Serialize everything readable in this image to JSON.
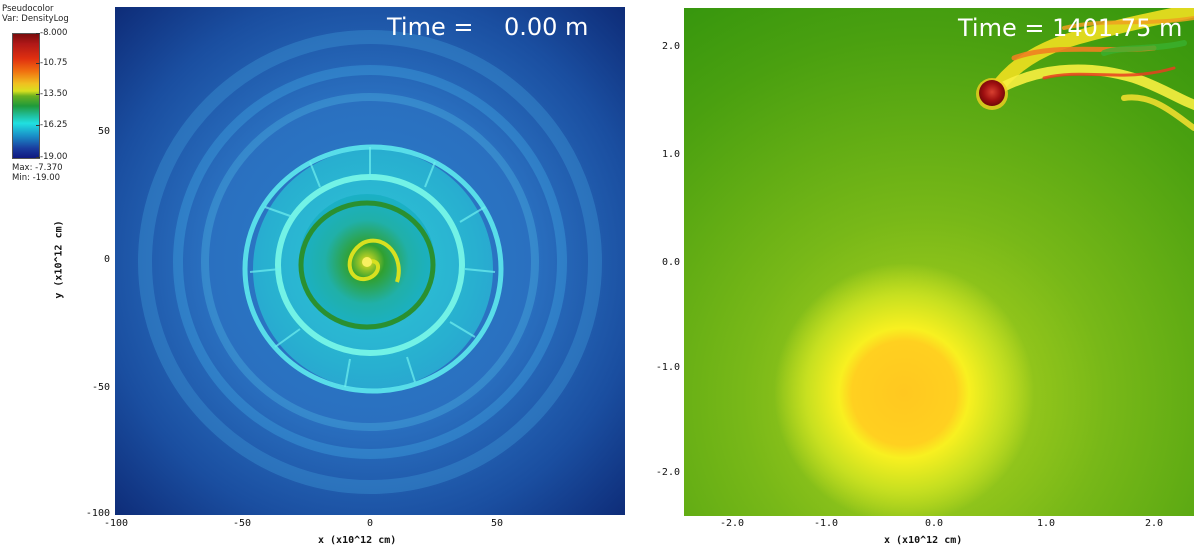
{
  "legend": {
    "title_line1": "Pseudocolor",
    "title_line2": "Var: DensityLog",
    "ticks": [
      "-8.000",
      "-10.75",
      "-13.50",
      "-16.25",
      "-19.00"
    ],
    "max_label": "Max: -7.370",
    "min_label": "Min: -19.00"
  },
  "left_panel": {
    "time_label": "Time =    0.00 m",
    "y_ticks": [
      "50",
      "0",
      "-50",
      "-100"
    ],
    "x_ticks": [
      "-100",
      "-50",
      "0",
      "50"
    ],
    "x_axis_label": "x (x10^12 cm)",
    "y_axis_label": "y (x10^12 cm)"
  },
  "right_panel": {
    "time_label": "Time = 1401.75 m",
    "y_ticks": [
      "2.0",
      "1.0",
      "0.0",
      "-1.0",
      "-2.0"
    ],
    "x_ticks": [
      "-2.0",
      "-1.0",
      "0.0",
      "1.0",
      "2.0"
    ],
    "x_axis_label": "x (x10^12 cm)"
  },
  "colors": {
    "outer_blue": "#1a4ea0",
    "ring_cyan": "#40e0e0",
    "background_green": "#3a9a10",
    "star_yellow": "#ffd020",
    "companion_red": "#b01818"
  }
}
